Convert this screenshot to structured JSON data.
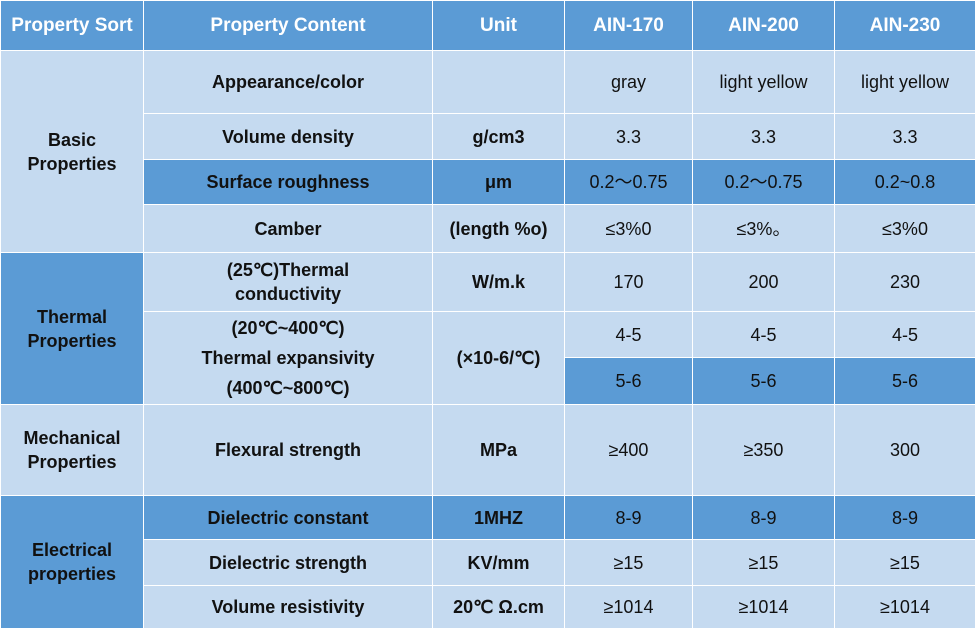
{
  "header": {
    "sort": "Property Sort",
    "content": "Property Content",
    "unit": "Unit",
    "col1": "AIN-170",
    "col2": "AIN-200",
    "col3": "AIN-230"
  },
  "groups": {
    "basic": "Basic Properties",
    "thermal": "Thermal Properties",
    "mechanical": "Mechanical Properties",
    "electrical": "Electrical properties"
  },
  "rows": {
    "appearance": {
      "name": "Appearance/color",
      "unit": "",
      "v1": "gray",
      "v2": "light yellow",
      "v3": "light yellow"
    },
    "density": {
      "name": "Volume density",
      "unit": "g/cm3",
      "v1": "3.3",
      "v2": "3.3",
      "v3": "3.3"
    },
    "roughness": {
      "name": "Surface roughness",
      "unit": "μm",
      "v1": "0.2～0.75",
      "v2": "0.2～0.75",
      "v3": "0.2~0.8"
    },
    "camber": {
      "name": "Camber",
      "unit": "(length %o)",
      "v1": "≤3%0",
      "v2": "≤3%。",
      "v3": "≤3%0"
    },
    "conductivity": {
      "name_line1": "(25℃)Thermal",
      "name_line2": "conductivity",
      "unit": "W/m.k",
      "v1": "170",
      "v2": "200",
      "v3": "230"
    },
    "expansivity": {
      "name_line1": "(20℃~400℃)",
      "name_line2": "Thermal expansivity",
      "name_line3": "(400℃~800℃)",
      "unit": "(×10-6/℃)",
      "low": {
        "v1": "4-5",
        "v2": "4-5",
        "v3": "4-5"
      },
      "high": {
        "v1": "5-6",
        "v2": "5-6",
        "v3": "5-6"
      }
    },
    "flexural": {
      "name": "Flexural strength",
      "unit": "MPa",
      "v1": "≥400",
      "v2": "≥350",
      "v3": "300"
    },
    "dielectric_constant": {
      "name": "Dielectric constant",
      "unit": "1MHZ",
      "v1": "8-9",
      "v2": "8-9",
      "v3": "8-9"
    },
    "dielectric_strength": {
      "name": "Dielectric strength",
      "unit": "KV/mm",
      "v1": "≥15",
      "v2": "≥15",
      "v3": "≥15"
    },
    "resistivity": {
      "name": "Volume resistivity",
      "unit": "20℃ Ω.cm",
      "v1": "≥1014",
      "v2": "≥1014",
      "v3": "≥1014"
    }
  }
}
